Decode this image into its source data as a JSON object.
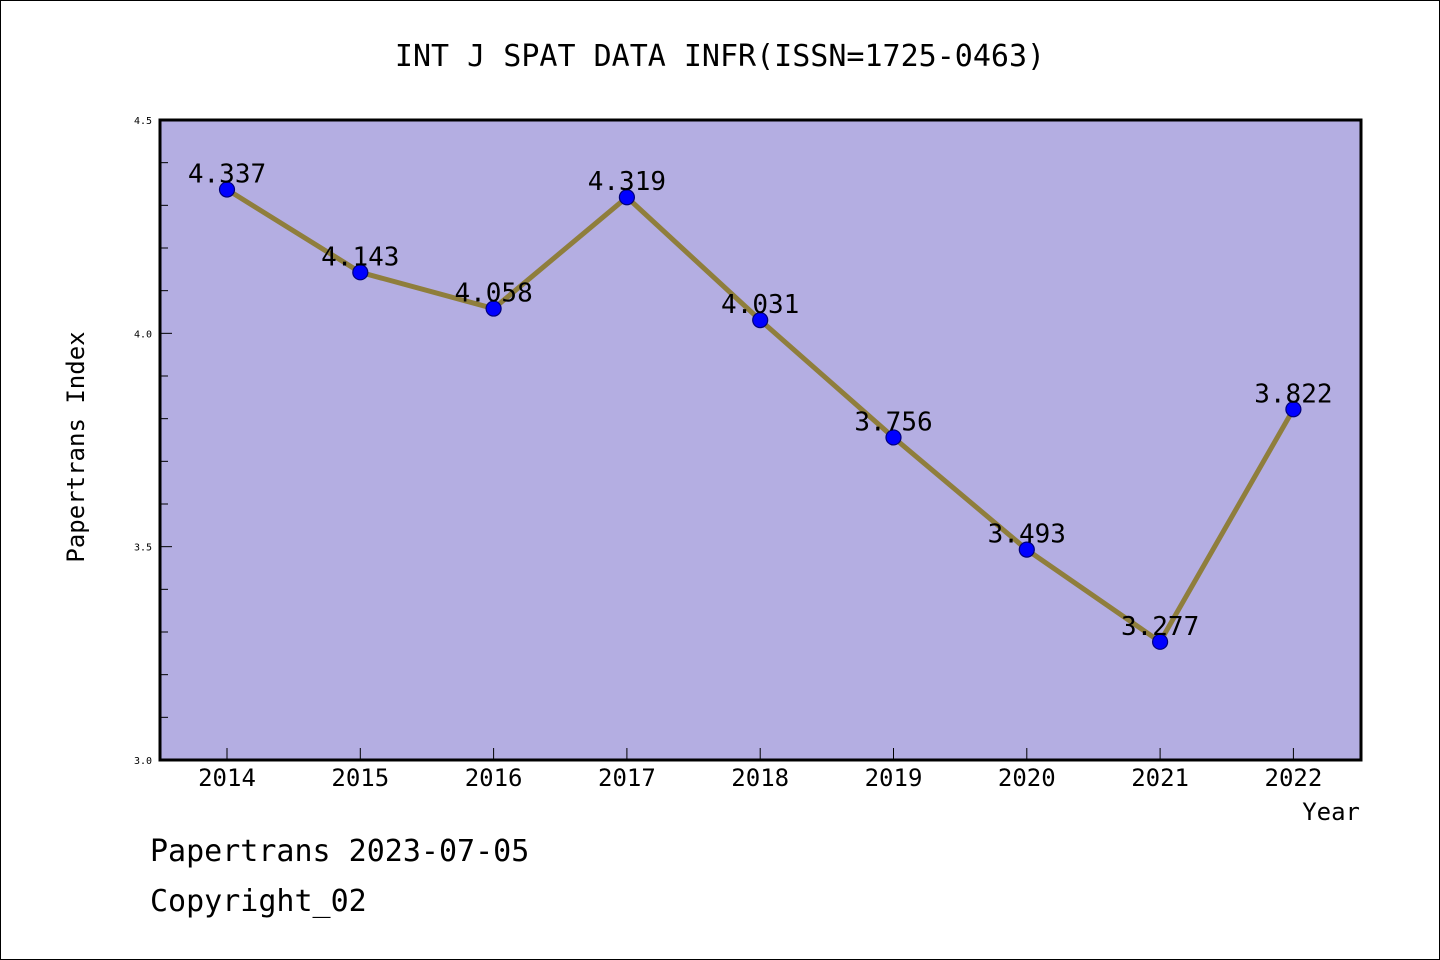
{
  "chart_data": {
    "type": "line",
    "title": "INT J SPAT DATA INFR(ISSN=1725-0463)",
    "xlabel": "Year",
    "ylabel": "Papertrans Index",
    "categories": [
      "2014",
      "2015",
      "2016",
      "2017",
      "2018",
      "2019",
      "2020",
      "2021",
      "2022"
    ],
    "series": [
      {
        "values": [
          4.337,
          4.143,
          4.058,
          4.319,
          4.031,
          3.756,
          3.493,
          3.277,
          3.822
        ],
        "data_labels": [
          "4.337",
          "4.143",
          "4.058",
          "4.319",
          "4.031",
          "3.756",
          "3.493",
          "3.277",
          "3.822"
        ]
      }
    ],
    "ylim": [
      3.0,
      4.5
    ],
    "yticks": [
      "3.0",
      "3.5",
      "4.0",
      "4.5"
    ],
    "grid": false,
    "colors": {
      "plot_background": "#b4aee2",
      "line": "#8f7e3c",
      "marker_fill": "#0000ff",
      "marker_edge": "#00007a"
    }
  },
  "footer": {
    "line1": "Papertrans 2023-07-05",
    "line2": "Copyright_02"
  }
}
